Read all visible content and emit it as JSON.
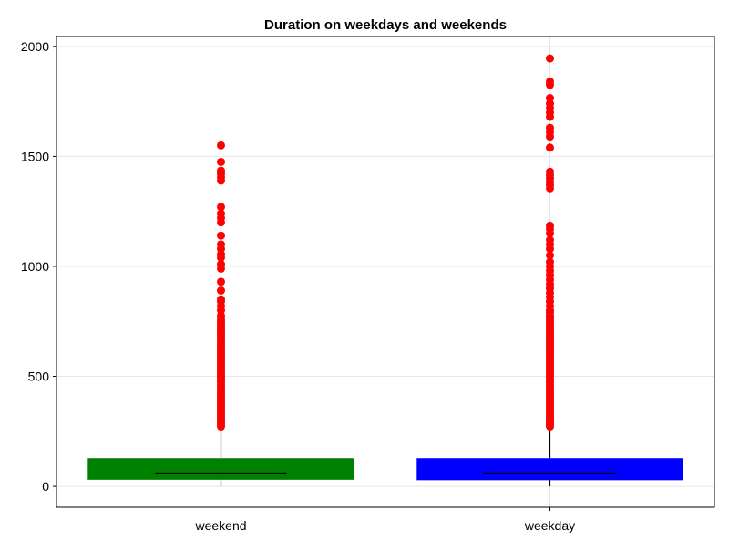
{
  "chart_data": {
    "type": "box",
    "title": "Duration on weekdays and weekends",
    "xlabel": "",
    "ylabel": "",
    "categories": [
      "weekend",
      "weekday"
    ],
    "ylim": [
      -95,
      2045
    ],
    "yticks": [
      0,
      500,
      1000,
      1500,
      2000
    ],
    "grid": true,
    "boxes": [
      {
        "category": "weekend",
        "color": "#008000",
        "q1": 30,
        "median": 60,
        "q3": 128,
        "whisker_low": 0,
        "whisker_high": 270,
        "outliers": [
          272,
          280,
          288,
          296,
          305,
          315,
          325,
          335,
          345,
          355,
          365,
          375,
          385,
          395,
          405,
          415,
          425,
          435,
          445,
          455,
          465,
          475,
          485,
          495,
          505,
          515,
          525,
          535,
          545,
          555,
          565,
          575,
          585,
          595,
          605,
          615,
          625,
          635,
          645,
          655,
          665,
          675,
          685,
          695,
          705,
          715,
          725,
          735,
          745,
          755,
          775,
          800,
          820,
          840,
          850,
          890,
          930,
          990,
          1010,
          1040,
          1055,
          1080,
          1100,
          1140,
          1200,
          1220,
          1240,
          1270,
          1390,
          1405,
          1420,
          1435,
          1475,
          1550
        ]
      },
      {
        "category": "weekday",
        "color": "#0000ff",
        "q1": 28,
        "median": 60,
        "q3": 128,
        "whisker_low": 0,
        "whisker_high": 270,
        "outliers": [
          272,
          280,
          288,
          296,
          305,
          315,
          325,
          335,
          345,
          355,
          365,
          375,
          385,
          395,
          405,
          415,
          425,
          435,
          445,
          455,
          465,
          475,
          485,
          495,
          505,
          515,
          525,
          535,
          545,
          555,
          565,
          575,
          585,
          595,
          605,
          615,
          625,
          635,
          645,
          655,
          665,
          675,
          685,
          695,
          705,
          715,
          725,
          735,
          745,
          755,
          765,
          775,
          790,
          800,
          820,
          840,
          860,
          880,
          900,
          920,
          940,
          960,
          980,
          1000,
          1020,
          1050,
          1080,
          1100,
          1120,
          1150,
          1170,
          1185,
          1355,
          1370,
          1385,
          1400,
          1415,
          1430,
          1540,
          1590,
          1610,
          1630,
          1680,
          1700,
          1720,
          1740,
          1765,
          1825,
          1840,
          1945
        ]
      }
    ]
  }
}
